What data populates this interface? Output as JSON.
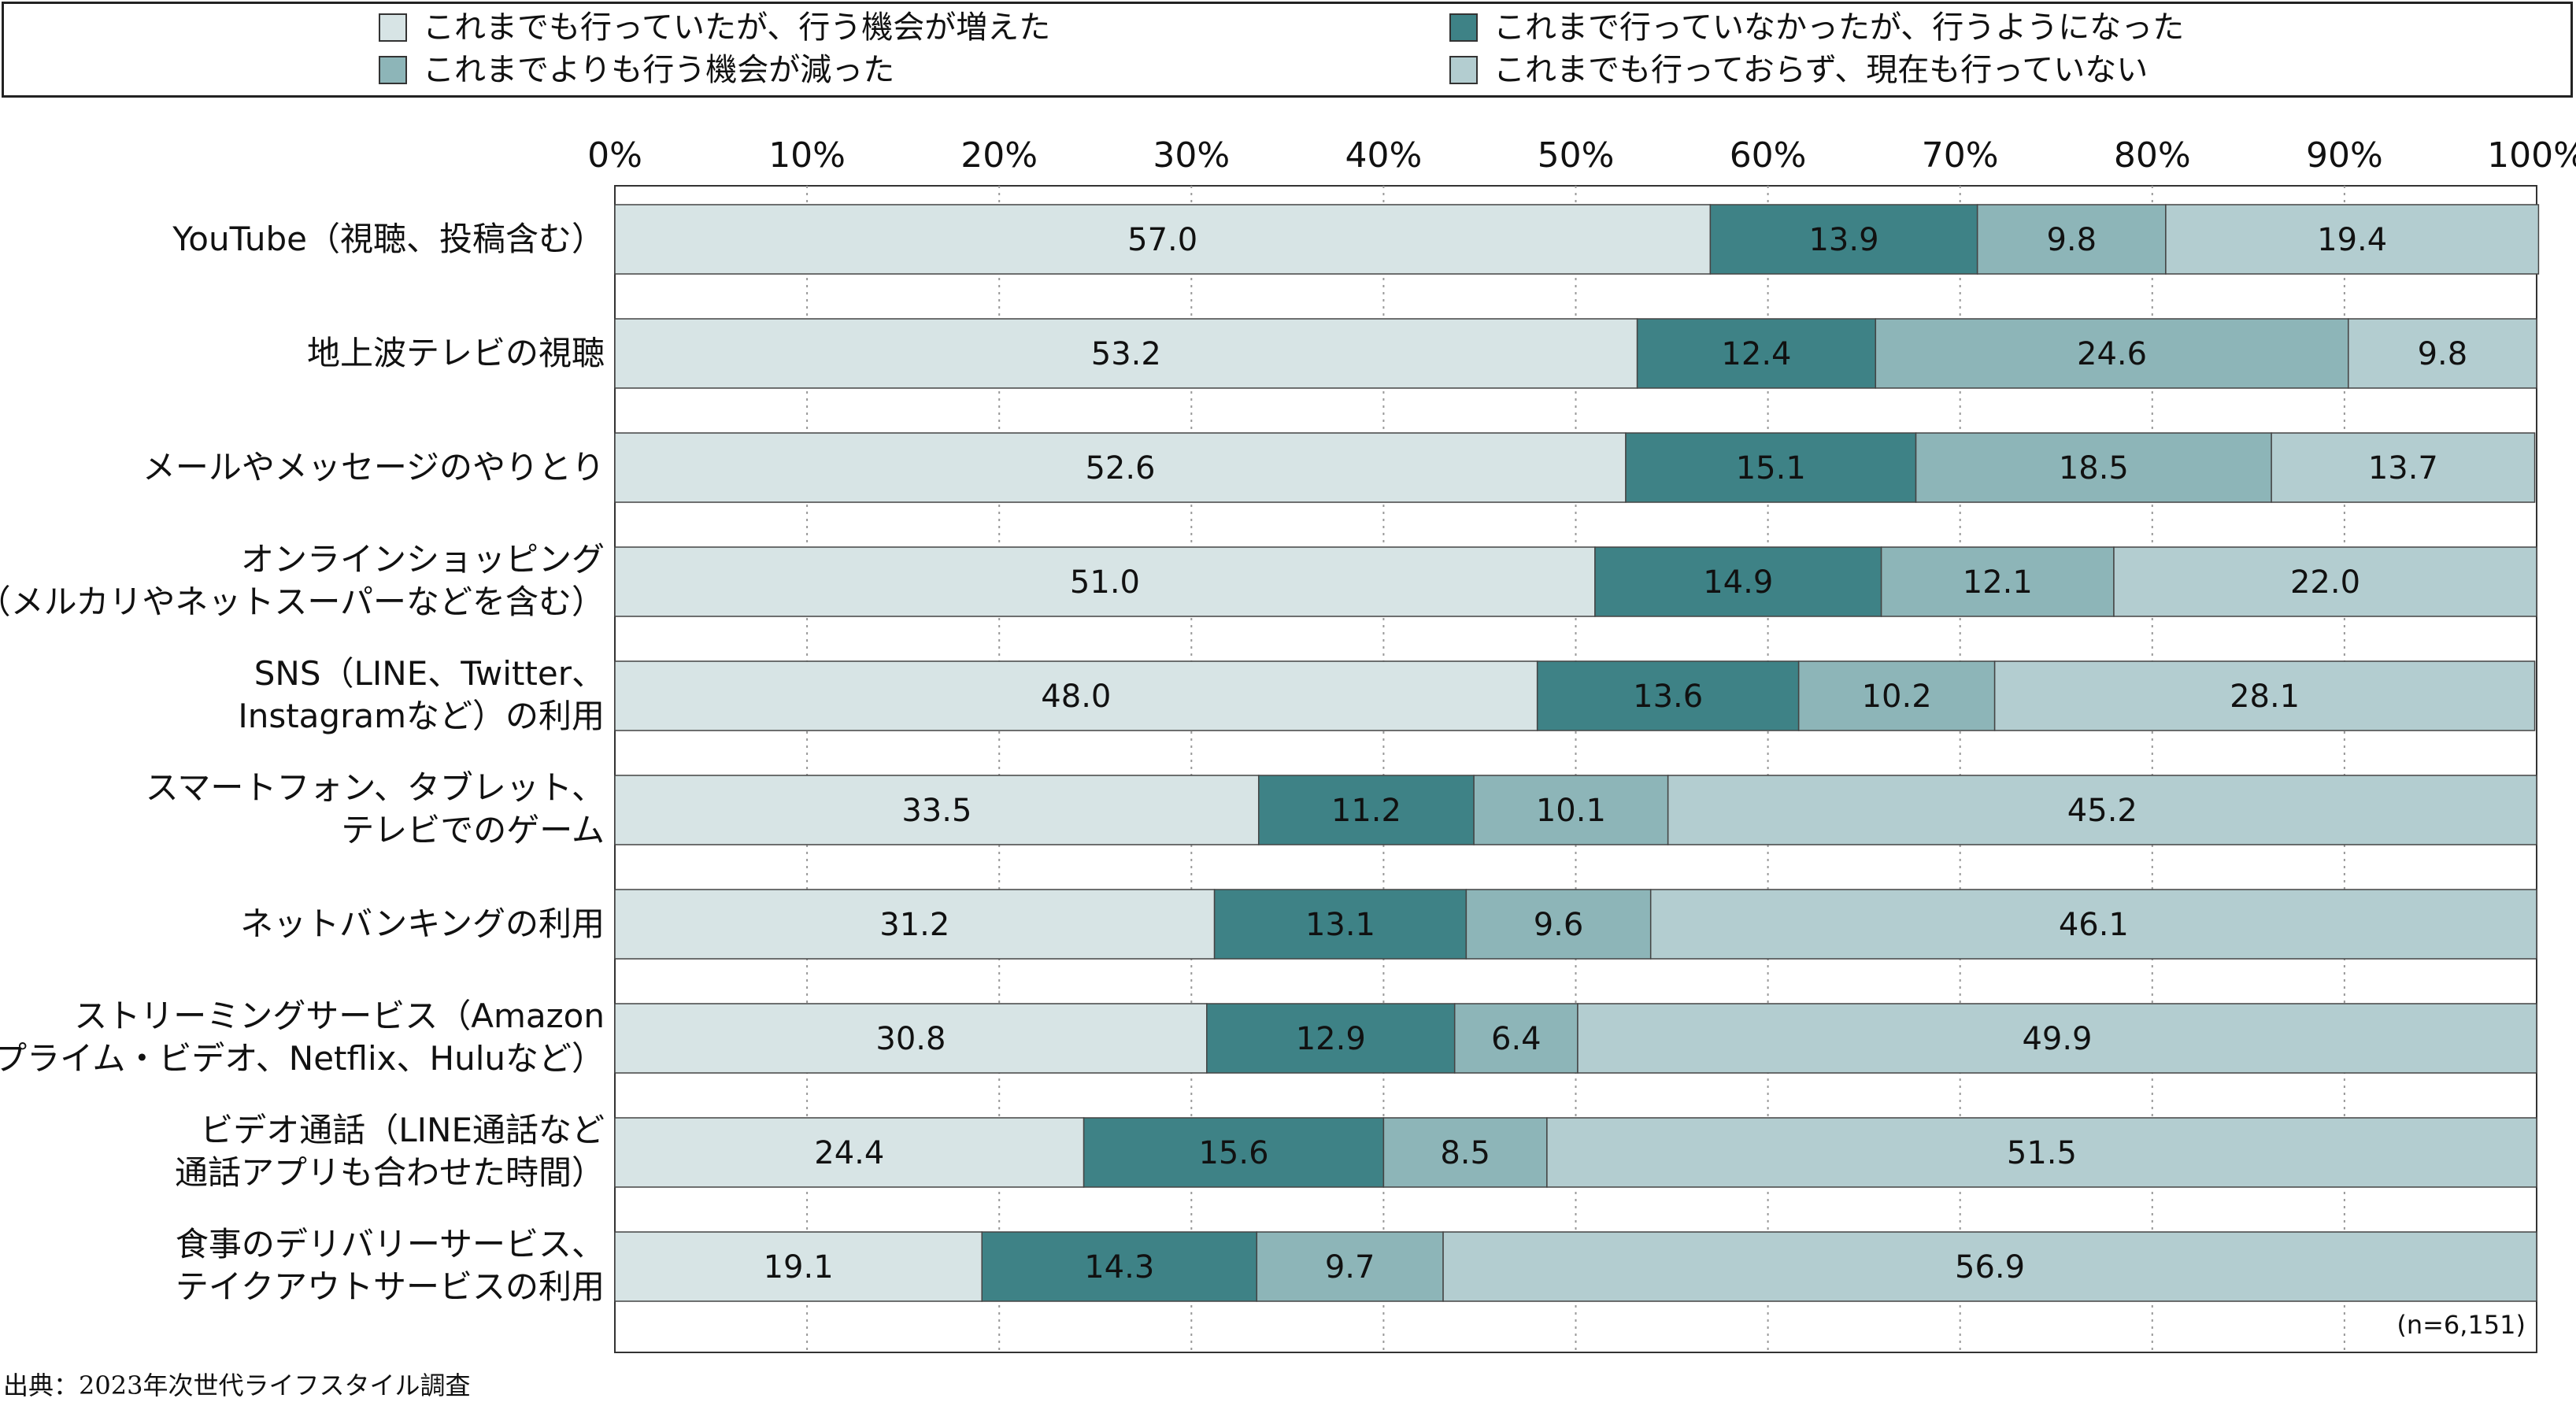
{
  "legend": [
    {
      "label": "これまでも行っていたが、行う機会が増えた",
      "color": "#d7e4e5"
    },
    {
      "label": "これまで行っていなかったが、行うようになった",
      "color": "#3e8286"
    },
    {
      "label": "これまでよりも行う機会が減った",
      "color": "#8db5b8"
    },
    {
      "label": "これまでも行っておらず、現在も行っていない",
      "color": "#b3cdd0"
    }
  ],
  "note": "(n=6,151)",
  "source": "出典：2023年次世代ライフスタイル調査",
  "chart_data": {
    "type": "bar",
    "orientation": "horizontal",
    "stacked": true,
    "xlim": [
      0,
      100
    ],
    "x_ticks": [
      "0%",
      "10%",
      "20%",
      "30%",
      "40%",
      "50%",
      "60%",
      "70%",
      "80%",
      "90%",
      "100%"
    ],
    "grid": "vertical dotted",
    "legend_position": "top",
    "categories": [
      [
        "YouTube（視聴、投稿含む）"
      ],
      [
        "地上波テレビの視聴"
      ],
      [
        "メールやメッセージのやりとり"
      ],
      [
        "オンラインショッピング",
        "（メルカリやネットスーパーなどを含む）"
      ],
      [
        "SNS（LINE、Twitter、",
        "Instagramなど）の利用"
      ],
      [
        "スマートフォン、タブレット、",
        "テレビでのゲーム"
      ],
      [
        "ネットバンキングの利用"
      ],
      [
        "ストリーミングサービス（Amazon",
        "プライム・ビデオ、Netflix、Huluなど）"
      ],
      [
        "ビデオ通話（LINE通話など",
        "通話アプリも合わせた時間）"
      ],
      [
        "食事のデリバリーサービス、",
        "テイクアウトサービスの利用"
      ]
    ],
    "series": [
      {
        "name": "これまでも行っていたが、行う機会が増えた",
        "color": "#d7e4e5",
        "values": [
          57.0,
          53.2,
          52.6,
          51.0,
          48.0,
          33.5,
          31.2,
          30.8,
          24.4,
          19.1
        ],
        "labels": [
          "57.0",
          "53.2",
          "52.6",
          "51.0",
          "48.0",
          "33.5",
          "31.2",
          "30.8",
          "24.4",
          "19.1"
        ]
      },
      {
        "name": "これまで行っていなかったが、行うようになった",
        "color": "#3e8286",
        "values": [
          13.9,
          12.4,
          15.1,
          14.9,
          13.6,
          11.2,
          13.1,
          12.9,
          15.6,
          14.3
        ],
        "labels": [
          "13.9",
          "12.4",
          "15.1",
          "14.9",
          "13.6",
          "11.2",
          "13.1",
          "12.9",
          "15.6",
          "14.3"
        ]
      },
      {
        "name": "これまでよりも行う機会が減った",
        "color": "#8db5b8",
        "values": [
          9.8,
          24.6,
          18.5,
          12.1,
          10.2,
          10.1,
          9.6,
          6.4,
          8.5,
          9.7
        ],
        "labels": [
          "9.8",
          "24.6",
          "18.5",
          "12.1",
          "10.2",
          "10.1",
          "9.6",
          "6.4",
          "8.5",
          "9.7"
        ]
      },
      {
        "name": "これまでも行っておらず、現在も行っていない",
        "color": "#b3cdd0",
        "values": [
          19.4,
          9.8,
          13.7,
          22.0,
          28.1,
          45.2,
          46.1,
          49.9,
          51.5,
          56.9
        ],
        "labels": [
          "19.4",
          "9.8",
          "13.7",
          "22.0",
          "28.1",
          "45.2",
          "46.1",
          "49.9",
          "51.5",
          "56.9"
        ]
      }
    ]
  }
}
